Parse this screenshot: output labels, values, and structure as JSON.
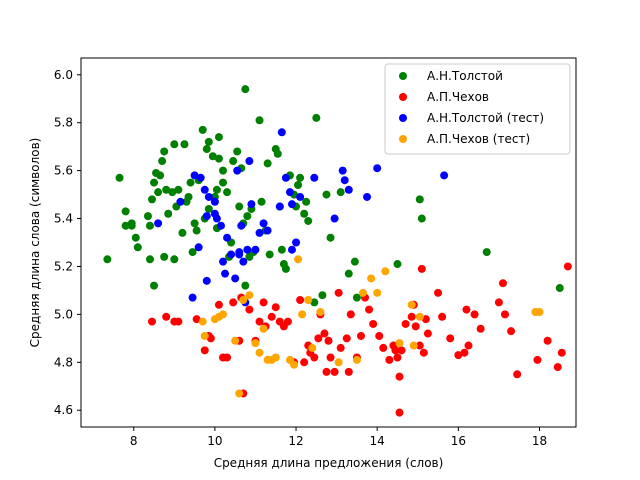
{
  "chart_data": {
    "type": "scatter",
    "title": "",
    "xlabel": "Средняя длина предложения (слов)",
    "ylabel": "Средняя длина слова (символов)",
    "xlim": [
      6.7,
      18.9
    ],
    "ylim": [
      4.53,
      6.07
    ],
    "xticks": [
      8,
      10,
      12,
      14,
      16,
      18
    ],
    "yticks": [
      4.6,
      4.8,
      5.0,
      5.2,
      5.4,
      5.6,
      5.8,
      6.0
    ],
    "xtick_labels": [
      "8",
      "10",
      "12",
      "14",
      "16",
      "18"
    ],
    "ytick_labels": [
      "4.6",
      "4.8",
      "5.0",
      "5.2",
      "5.4",
      "5.6",
      "5.8",
      "6.0"
    ],
    "grid": false,
    "legend_position": "top-right",
    "series": [
      {
        "name": "А.Н.Толстой",
        "color": "#008000",
        "points": [
          [
            7.35,
            5.23
          ],
          [
            7.65,
            5.57
          ],
          [
            7.8,
            5.43
          ],
          [
            7.8,
            5.37
          ],
          [
            7.95,
            5.38
          ],
          [
            7.95,
            5.37
          ],
          [
            8.05,
            5.32
          ],
          [
            8.1,
            5.28
          ],
          [
            8.35,
            5.41
          ],
          [
            8.4,
            5.23
          ],
          [
            8.4,
            5.37
          ],
          [
            8.45,
            5.48
          ],
          [
            8.5,
            5.12
          ],
          [
            8.5,
            5.55
          ],
          [
            8.55,
            5.59
          ],
          [
            8.6,
            5.51
          ],
          [
            8.65,
            5.58
          ],
          [
            8.7,
            5.64
          ],
          [
            8.75,
            5.68
          ],
          [
            8.75,
            5.24
          ],
          [
            8.8,
            5.52
          ],
          [
            8.85,
            5.42
          ],
          [
            8.95,
            5.51
          ],
          [
            9.0,
            5.71
          ],
          [
            9.0,
            5.23
          ],
          [
            9.05,
            5.45
          ],
          [
            9.1,
            5.52
          ],
          [
            9.2,
            5.34
          ],
          [
            9.25,
            5.71
          ],
          [
            9.3,
            5.47
          ],
          [
            9.35,
            5.49
          ],
          [
            9.4,
            5.55
          ],
          [
            9.45,
            5.26
          ],
          [
            9.5,
            5.38
          ],
          [
            9.55,
            5.35
          ],
          [
            9.6,
            5.56
          ],
          [
            9.7,
            5.77
          ],
          [
            9.75,
            5.4
          ],
          [
            9.8,
            5.69
          ],
          [
            9.85,
            5.72
          ],
          [
            9.85,
            5.44
          ],
          [
            9.95,
            5.66
          ],
          [
            10.0,
            5.49
          ],
          [
            10.05,
            5.52
          ],
          [
            10.05,
            5.36
          ],
          [
            10.1,
            5.74
          ],
          [
            10.1,
            5.65
          ],
          [
            10.2,
            5.6
          ],
          [
            10.2,
            5.55
          ],
          [
            10.3,
            5.51
          ],
          [
            10.35,
            5.24
          ],
          [
            10.4,
            5.3
          ],
          [
            10.45,
            5.64
          ],
          [
            10.55,
            5.68
          ],
          [
            10.6,
            5.45
          ],
          [
            10.65,
            5.61
          ],
          [
            10.7,
            5.38
          ],
          [
            10.75,
            5.12
          ],
          [
            10.75,
            5.94
          ],
          [
            10.8,
            5.41
          ],
          [
            10.85,
            5.24
          ],
          [
            10.9,
            5.44
          ],
          [
            10.95,
            5.26
          ],
          [
            11.1,
            5.81
          ],
          [
            11.15,
            5.47
          ],
          [
            11.25,
            5.35
          ],
          [
            11.3,
            5.63
          ],
          [
            11.35,
            5.25
          ],
          [
            11.5,
            5.69
          ],
          [
            11.55,
            5.67
          ],
          [
            11.6,
            5.45
          ],
          [
            11.65,
            5.27
          ],
          [
            11.7,
            5.21
          ],
          [
            11.75,
            5.19
          ],
          [
            11.85,
            5.58
          ],
          [
            11.95,
            5.5
          ],
          [
            12.0,
            5.45
          ],
          [
            12.05,
            5.54
          ],
          [
            12.1,
            5.57
          ],
          [
            12.2,
            5.42
          ],
          [
            12.25,
            5.47
          ],
          [
            12.3,
            5.39
          ],
          [
            12.45,
            5.05
          ],
          [
            12.5,
            5.82
          ],
          [
            12.65,
            5.08
          ],
          [
            12.75,
            5.5
          ],
          [
            12.85,
            5.32
          ],
          [
            13.1,
            5.51
          ],
          [
            13.3,
            5.17
          ],
          [
            13.45,
            5.22
          ],
          [
            13.5,
            5.07
          ],
          [
            14.5,
            5.21
          ],
          [
            14.9,
            5.04
          ],
          [
            15.05,
            5.48
          ],
          [
            15.1,
            5.4
          ],
          [
            16.7,
            5.26
          ],
          [
            18.5,
            5.11
          ]
        ]
      },
      {
        "name": "А.П.Чехов",
        "color": "#ff0000",
        "points": [
          [
            8.45,
            4.97
          ],
          [
            8.8,
            4.99
          ],
          [
            9.0,
            4.97
          ],
          [
            9.1,
            4.97
          ],
          [
            9.55,
            4.98
          ],
          [
            9.75,
            4.85
          ],
          [
            9.85,
            4.91
          ],
          [
            9.9,
            4.9
          ],
          [
            10.1,
            5.04
          ],
          [
            10.2,
            4.82
          ],
          [
            10.3,
            4.82
          ],
          [
            10.45,
            5.05
          ],
          [
            10.6,
            4.89
          ],
          [
            10.65,
            5.07
          ],
          [
            10.7,
            4.67
          ],
          [
            10.85,
            5.02
          ],
          [
            11.0,
            4.89
          ],
          [
            11.1,
            4.97
          ],
          [
            11.2,
            5.05
          ],
          [
            11.25,
            4.95
          ],
          [
            11.4,
            4.99
          ],
          [
            11.5,
            5.03
          ],
          [
            11.6,
            4.97
          ],
          [
            11.7,
            4.95
          ],
          [
            11.8,
            4.97
          ],
          [
            11.95,
            4.8
          ],
          [
            12.1,
            5.06
          ],
          [
            12.2,
            4.8
          ],
          [
            12.3,
            4.87
          ],
          [
            12.35,
            4.84
          ],
          [
            12.45,
            4.82
          ],
          [
            12.55,
            4.9
          ],
          [
            12.6,
            5.0
          ],
          [
            12.7,
            4.92
          ],
          [
            12.75,
            4.76
          ],
          [
            12.8,
            4.89
          ],
          [
            12.85,
            4.82
          ],
          [
            12.95,
            4.76
          ],
          [
            13.05,
            5.09
          ],
          [
            13.1,
            4.86
          ],
          [
            13.25,
            4.9
          ],
          [
            13.3,
            4.76
          ],
          [
            13.35,
            5.0
          ],
          [
            13.5,
            4.82
          ],
          [
            13.6,
            4.91
          ],
          [
            13.7,
            5.07
          ],
          [
            13.8,
            5.02
          ],
          [
            13.9,
            4.96
          ],
          [
            14.05,
            4.91
          ],
          [
            14.15,
            4.86
          ],
          [
            14.3,
            4.81
          ],
          [
            14.4,
            4.87
          ],
          [
            14.45,
            4.85
          ],
          [
            14.5,
            4.82
          ],
          [
            14.55,
            4.74
          ],
          [
            14.6,
            4.85
          ],
          [
            14.7,
            4.96
          ],
          [
            14.85,
            4.99
          ],
          [
            14.9,
            5.04
          ],
          [
            14.95,
            4.95
          ],
          [
            15.05,
            4.87
          ],
          [
            15.1,
            5.19
          ],
          [
            15.15,
            4.84
          ],
          [
            15.2,
            4.98
          ],
          [
            15.25,
            4.92
          ],
          [
            15.5,
            5.09
          ],
          [
            15.6,
            4.99
          ],
          [
            15.8,
            4.9
          ],
          [
            16.0,
            4.83
          ],
          [
            16.15,
            4.84
          ],
          [
            16.2,
            5.02
          ],
          [
            16.25,
            4.87
          ],
          [
            16.4,
            5.0
          ],
          [
            16.55,
            4.94
          ],
          [
            17.0,
            5.05
          ],
          [
            17.1,
            5.13
          ],
          [
            17.15,
            5.0
          ],
          [
            17.3,
            4.93
          ],
          [
            17.45,
            4.75
          ],
          [
            17.95,
            4.81
          ],
          [
            18.2,
            4.89
          ],
          [
            18.45,
            4.78
          ],
          [
            18.55,
            4.84
          ],
          [
            18.7,
            5.2
          ],
          [
            14.55,
            4.59
          ]
        ]
      },
      {
        "name": "А.Н.Толстой (тест)",
        "color": "#0000ff",
        "points": [
          [
            8.6,
            5.38
          ],
          [
            9.15,
            5.47
          ],
          [
            9.45,
            5.07
          ],
          [
            9.5,
            5.58
          ],
          [
            9.6,
            5.28
          ],
          [
            9.65,
            5.57
          ],
          [
            9.75,
            5.52
          ],
          [
            9.8,
            5.41
          ],
          [
            9.8,
            5.14
          ],
          [
            9.85,
            5.49
          ],
          [
            10.0,
            5.42
          ],
          [
            10.05,
            5.4
          ],
          [
            10.15,
            5.37
          ],
          [
            10.2,
            5.22
          ],
          [
            10.25,
            5.17
          ],
          [
            10.3,
            5.32
          ],
          [
            10.4,
            5.25
          ],
          [
            10.5,
            5.15
          ],
          [
            10.55,
            5.6
          ],
          [
            10.6,
            5.25
          ],
          [
            10.65,
            5.37
          ],
          [
            10.7,
            5.22
          ],
          [
            10.75,
            5.05
          ],
          [
            10.8,
            5.27
          ],
          [
            10.85,
            5.64
          ],
          [
            10.9,
            5.46
          ],
          [
            11.0,
            5.27
          ],
          [
            11.1,
            5.34
          ],
          [
            11.2,
            5.38
          ],
          [
            11.3,
            5.35
          ],
          [
            11.6,
            5.45
          ],
          [
            11.65,
            5.76
          ],
          [
            11.75,
            5.57
          ],
          [
            11.85,
            5.51
          ],
          [
            11.9,
            5.46
          ],
          [
            12.0,
            5.3
          ],
          [
            12.1,
            5.49
          ],
          [
            12.45,
            5.57
          ],
          [
            12.95,
            5.4
          ],
          [
            13.15,
            5.6
          ],
          [
            13.2,
            5.56
          ],
          [
            13.3,
            5.52
          ],
          [
            13.75,
            5.49
          ],
          [
            14.0,
            5.61
          ],
          [
            15.65,
            5.58
          ],
          [
            10.0,
            5.47
          ],
          [
            10.6,
            5.26
          ],
          [
            11.9,
            5.27
          ]
        ]
      },
      {
        "name": "А.П.Чехов (тест)",
        "color": "#ffa500",
        "points": [
          [
            9.7,
            4.97
          ],
          [
            9.75,
            4.91
          ],
          [
            10.0,
            4.98
          ],
          [
            10.1,
            4.99
          ],
          [
            10.2,
            5.0
          ],
          [
            10.5,
            4.89
          ],
          [
            10.6,
            4.67
          ],
          [
            10.7,
            5.06
          ],
          [
            10.85,
            5.08
          ],
          [
            11.0,
            4.88
          ],
          [
            11.1,
            4.84
          ],
          [
            11.2,
            4.94
          ],
          [
            11.3,
            4.81
          ],
          [
            11.4,
            4.81
          ],
          [
            11.5,
            4.82
          ],
          [
            11.85,
            4.81
          ],
          [
            11.95,
            4.79
          ],
          [
            12.05,
            5.23
          ],
          [
            12.15,
            5.0
          ],
          [
            12.3,
            5.06
          ],
          [
            12.6,
            5.01
          ],
          [
            13.05,
            4.8
          ],
          [
            13.5,
            4.81
          ],
          [
            13.65,
            5.09
          ],
          [
            13.85,
            5.15
          ],
          [
            14.0,
            5.09
          ],
          [
            14.2,
            5.18
          ],
          [
            14.55,
            4.88
          ],
          [
            14.85,
            5.04
          ],
          [
            14.9,
            4.87
          ],
          [
            15.05,
            4.99
          ],
          [
            17.9,
            5.01
          ],
          [
            18.0,
            5.01
          ],
          [
            12.4,
            4.86
          ]
        ]
      }
    ]
  }
}
